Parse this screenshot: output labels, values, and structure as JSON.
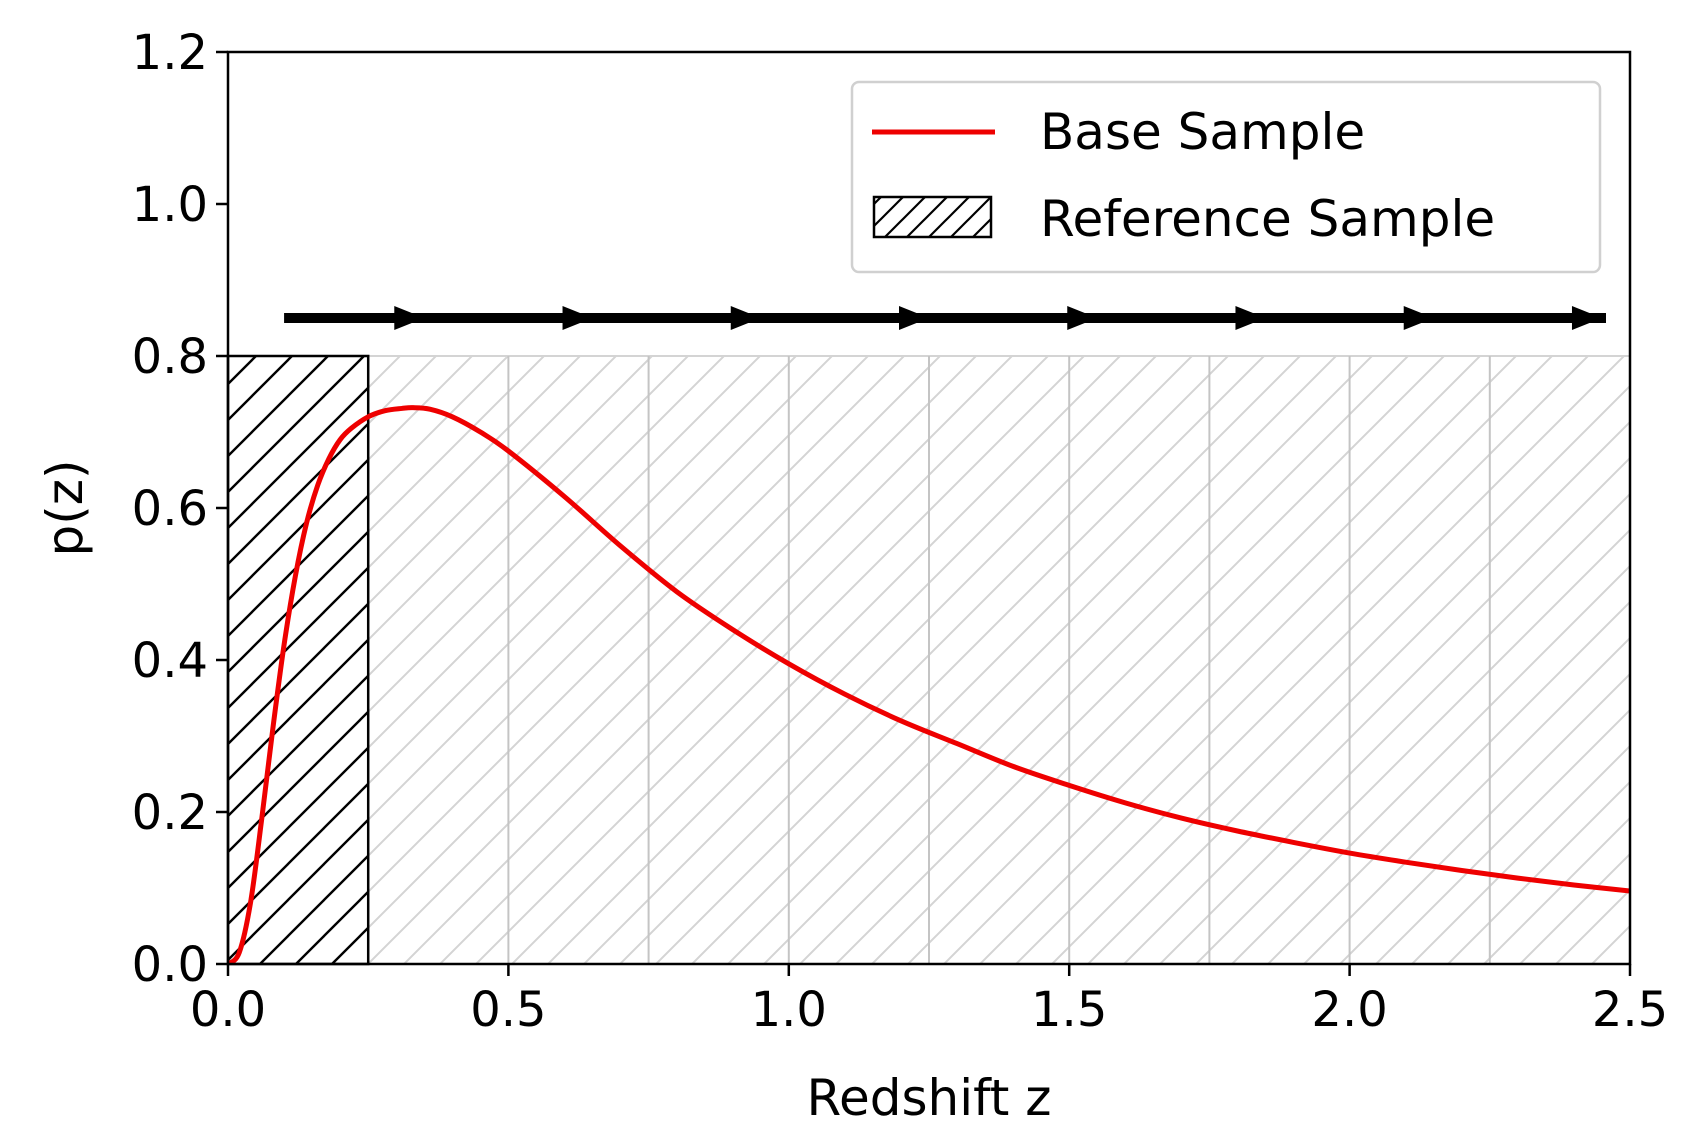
{
  "chart_data": {
    "type": "line",
    "title": "",
    "xlabel": "Redshift z",
    "ylabel": "p(z)",
    "xlim": [
      0.0,
      2.5
    ],
    "ylim": [
      0.0,
      1.2
    ],
    "xticks": [
      "0.0",
      "0.5",
      "1.0",
      "1.5",
      "2.0",
      "2.5"
    ],
    "yticks": [
      "0.0",
      "0.2",
      "0.4",
      "0.6",
      "0.8",
      "1.0",
      "1.2"
    ],
    "grid": false,
    "legend": {
      "placement": "top-right",
      "entries": [
        {
          "label": "Base Sample",
          "kind": "line"
        },
        {
          "label": "Reference Sample",
          "kind": "hatched-box"
        }
      ]
    },
    "series": [
      {
        "name": "Base Sample",
        "color": "#ee0000",
        "x": [
          0.0,
          0.02,
          0.04,
          0.06,
          0.08,
          0.1,
          0.12,
          0.14,
          0.16,
          0.18,
          0.2,
          0.22,
          0.25,
          0.28,
          0.31,
          0.33,
          0.36,
          0.4,
          0.45,
          0.5,
          0.6,
          0.7,
          0.8,
          0.9,
          1.0,
          1.1,
          1.2,
          1.3,
          1.4,
          1.5,
          1.6,
          1.7,
          1.8,
          1.9,
          2.0,
          2.1,
          2.2,
          2.3,
          2.4,
          2.5
        ],
        "y": [
          0.0,
          0.015,
          0.08,
          0.19,
          0.31,
          0.42,
          0.51,
          0.58,
          0.63,
          0.665,
          0.69,
          0.705,
          0.72,
          0.728,
          0.731,
          0.732,
          0.73,
          0.72,
          0.7,
          0.675,
          0.615,
          0.55,
          0.49,
          0.44,
          0.395,
          0.355,
          0.32,
          0.29,
          0.26,
          0.235,
          0.212,
          0.192,
          0.175,
          0.16,
          0.146,
          0.134,
          0.123,
          0.113,
          0.104,
          0.096
        ]
      }
    ],
    "reference_sample": {
      "name": "Reference Sample",
      "x_range": [
        0.0,
        0.25
      ],
      "height": 0.8,
      "hatch": "//",
      "color": "#000000"
    },
    "shaded_bins": {
      "edges": [
        0.25,
        0.5,
        0.75,
        1.0,
        1.25,
        1.5,
        1.75,
        2.0,
        2.25,
        2.5
      ],
      "height": 0.8,
      "hatch": "//",
      "color": "#cccccc"
    },
    "arrow": {
      "y": 0.85,
      "x_start": 0.1,
      "x_end": 2.5,
      "head_positions": [
        0.35,
        0.65,
        0.95,
        1.25,
        1.55,
        1.85,
        2.15,
        2.45
      ],
      "color": "#000000"
    }
  }
}
